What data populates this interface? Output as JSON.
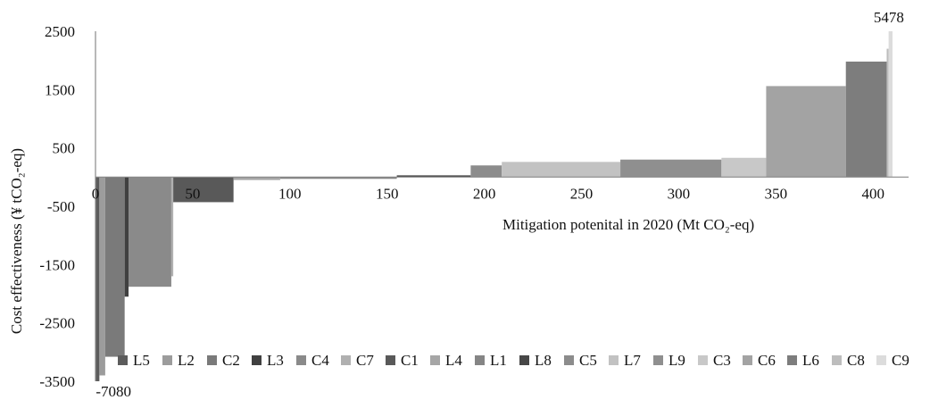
{
  "chart_data": {
    "type": "bar",
    "subtype": "marginal abatement cost curve",
    "xlabel": "Mitigation potenital in 2020  (Mt CO₂-eq)",
    "ylabel": "Cost effectiveness (¥ tCO₂-eq)",
    "xlim": [
      0,
      410
    ],
    "ylim": [
      -3500,
      2500
    ],
    "x_ticks": [
      0,
      50,
      100,
      150,
      200,
      250,
      300,
      350,
      400
    ],
    "y_ticks": [
      -3500,
      -2500,
      -1500,
      -500,
      500,
      1500,
      2500
    ],
    "grid": false,
    "legend_position": "bottom",
    "series": [
      {
        "name": "L5",
        "x_start": 0,
        "x_end": 2,
        "value": -7080,
        "color": "#5c5c5c"
      },
      {
        "name": "L2",
        "x_start": 2,
        "x_end": 5,
        "value": -3400,
        "color": "#9c9c9c"
      },
      {
        "name": "C2",
        "x_start": 5,
        "x_end": 15,
        "value": -3080,
        "color": "#7a7a7a"
      },
      {
        "name": "L3",
        "x_start": 15,
        "x_end": 17,
        "value": -2050,
        "color": "#404040"
      },
      {
        "name": "C4",
        "x_start": 17,
        "x_end": 39,
        "value": -1880,
        "color": "#8a8a8a"
      },
      {
        "name": "C7",
        "x_start": 39,
        "x_end": 40,
        "value": -1700,
        "color": "#b0b0b0"
      },
      {
        "name": "C1",
        "x_start": 40,
        "x_end": 71,
        "value": -430,
        "color": "#595959"
      },
      {
        "name": "L4",
        "x_start": 71,
        "x_end": 95,
        "value": -50,
        "color": "#a6a6a6"
      },
      {
        "name": "L1",
        "x_start": 95,
        "x_end": 155,
        "value": -30,
        "color": "#858585"
      },
      {
        "name": "L8",
        "x_start": 155,
        "x_end": 193,
        "value": 30,
        "color": "#474747"
      },
      {
        "name": "C5",
        "x_start": 193,
        "x_end": 209,
        "value": 200,
        "color": "#8c8c8c"
      },
      {
        "name": "L7",
        "x_start": 209,
        "x_end": 270,
        "value": 260,
        "color": "#c2c2c2"
      },
      {
        "name": "L9",
        "x_start": 270,
        "x_end": 322,
        "value": 300,
        "color": "#8f8f8f"
      },
      {
        "name": "C3",
        "x_start": 322,
        "x_end": 345,
        "value": 330,
        "color": "#c8c8c8"
      },
      {
        "name": "C6",
        "x_start": 345,
        "x_end": 386,
        "value": 1560,
        "color": "#a3a3a3"
      },
      {
        "name": "L6",
        "x_start": 386,
        "x_end": 407,
        "value": 1980,
        "color": "#7d7d7d"
      },
      {
        "name": "C8",
        "x_start": 407,
        "x_end": 408,
        "value": 2200,
        "color": "#bdbdbd"
      },
      {
        "name": "C9",
        "x_start": 408,
        "x_end": 410,
        "value": 5478,
        "color": "#dcdcdc"
      }
    ],
    "annotations": [
      {
        "text": "5478",
        "series": "C9"
      },
      {
        "text": "-7080",
        "series": "L5"
      }
    ]
  }
}
